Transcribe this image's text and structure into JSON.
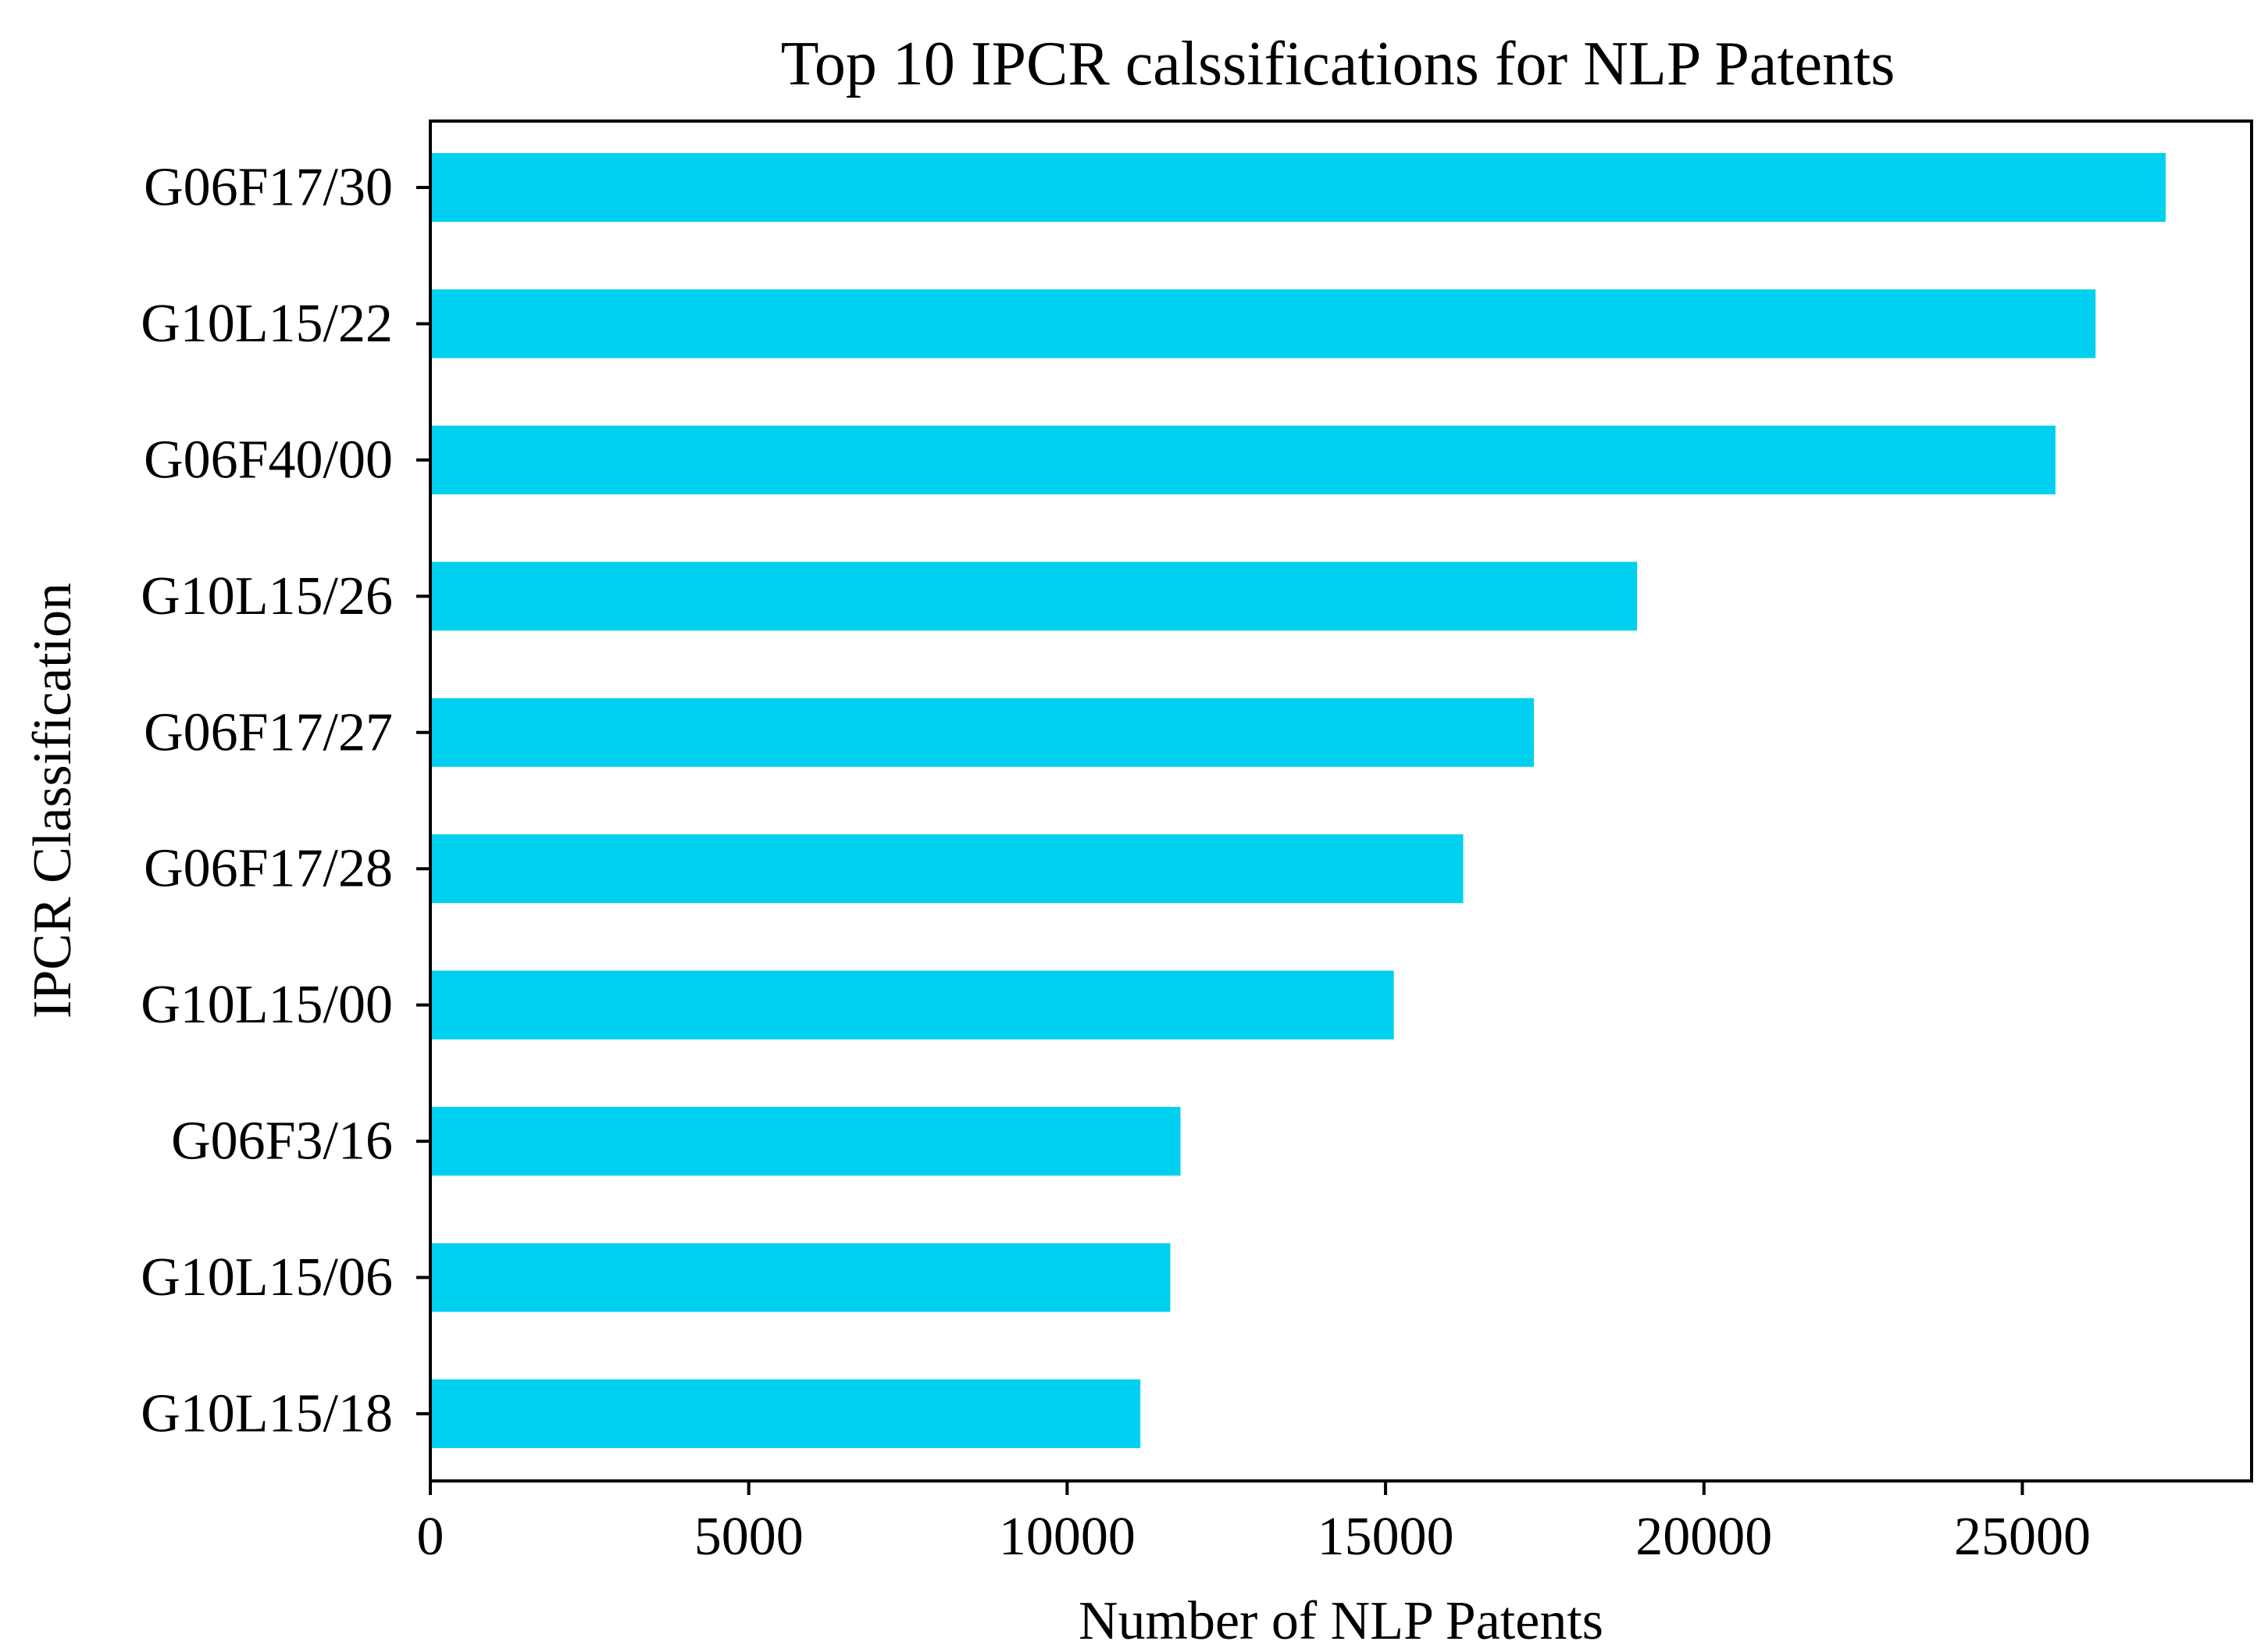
{
  "chart_data": {
    "type": "bar",
    "orientation": "horizontal",
    "title": "Top 10 IPCR calssifications for NLP Patents",
    "xlabel": "Number of NLP Patents",
    "ylabel": "IPCR Classification",
    "categories": [
      "G06F17/30",
      "G10L15/22",
      "G06F40/00",
      "G10L15/26",
      "G06F17/27",
      "G06F17/28",
      "G10L15/00",
      "G06F3/16",
      "G10L15/06",
      "G10L15/18"
    ],
    "values": [
      27250,
      26150,
      25520,
      18950,
      17330,
      16220,
      15130,
      11780,
      11620,
      11150
    ],
    "xlim": [
      0,
      28600
    ],
    "xticks": [
      0,
      5000,
      10000,
      15000,
      20000,
      25000
    ],
    "grid": false,
    "bar_color": "#00d0ef"
  }
}
